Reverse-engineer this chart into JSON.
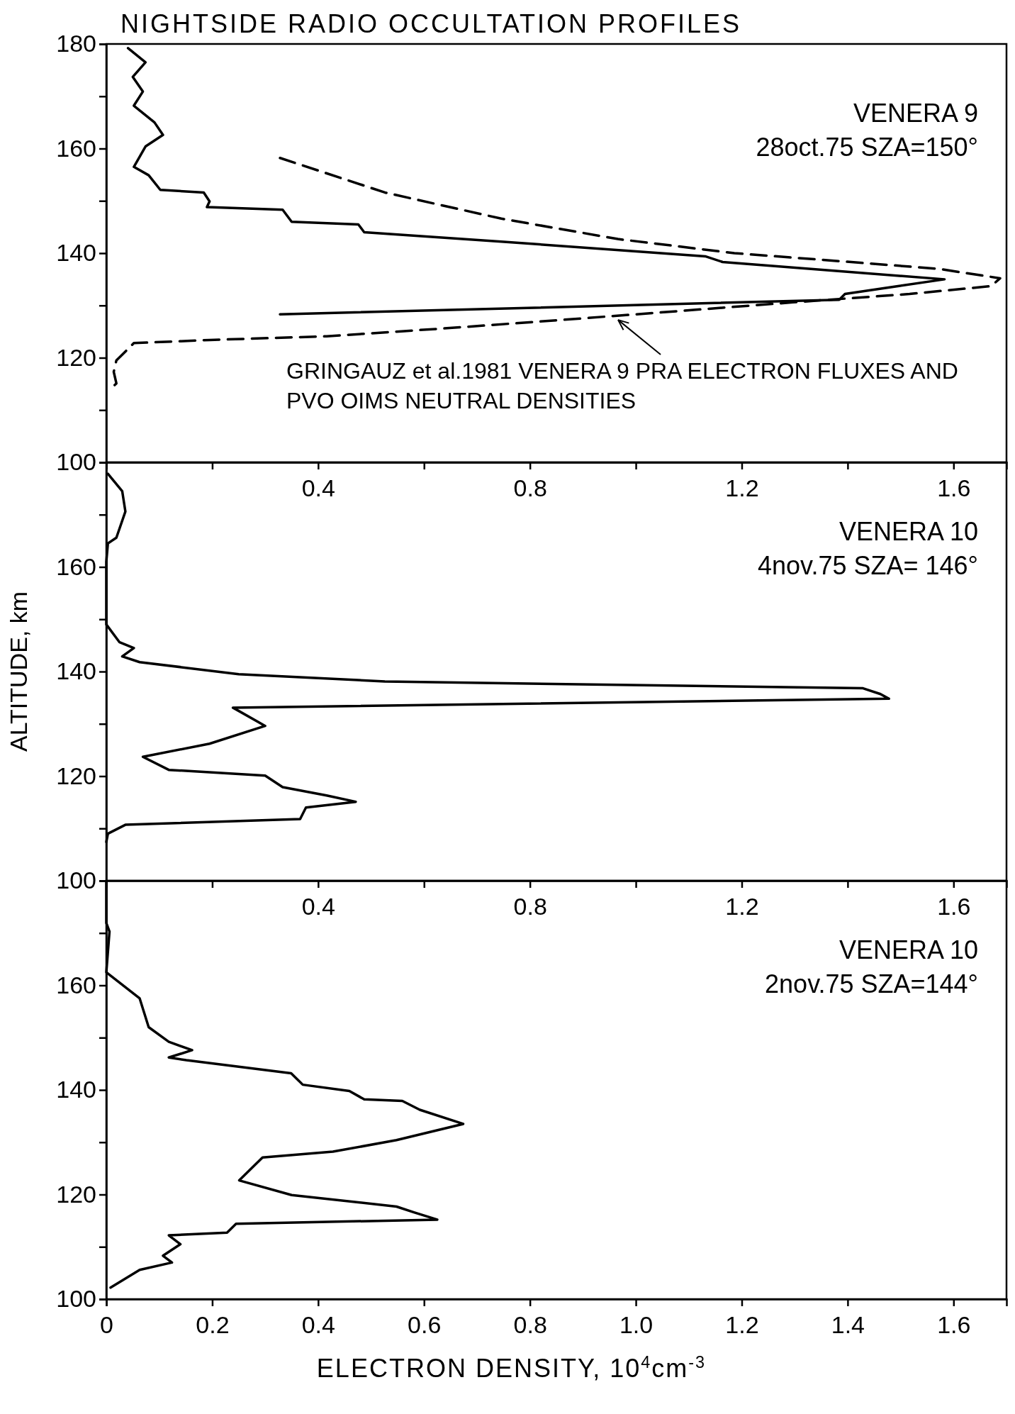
{
  "chart_data": [
    {
      "type": "line",
      "title": "NIGHTSIDE RADIO OCCULTATION PROFILES",
      "annotations": [
        "VENERA 9",
        "28oct.75  SZA=150°"
      ],
      "xlim": [
        0,
        1.7
      ],
      "xticks": [
        {
          "value": 0.2,
          "label": null
        },
        0.4,
        {
          "value": 0.6,
          "label": null
        },
        0.8,
        {
          "value": 1.0,
          "label": null
        },
        1.2,
        {
          "value": 1.4,
          "label": null
        },
        1.6
      ],
      "ylim": [
        100,
        180
      ],
      "yticks": [
        100,
        {
          "value": 110,
          "label": null
        },
        120,
        {
          "value": 130,
          "label": null
        },
        140,
        {
          "value": 150,
          "label": null
        },
        160,
        {
          "value": 170,
          "label": null
        },
        180
      ],
      "series": [
        {
          "color": "#000000",
          "line_style": "solid",
          "x": [
            0.041,
            0.074,
            0.05,
            0.069,
            0.052,
            0.091,
            0.107,
            0.074,
            0.052,
            0.08,
            0.102,
            0.184,
            0.195,
            0.19,
            0.333,
            0.35,
            0.476,
            0.487,
            0.746,
            1.131,
            1.164,
            1.583,
            1.495,
            1.395,
            1.384,
            0.328
          ],
          "values": [
            179.2,
            176.5,
            173.7,
            170.9,
            168.2,
            165,
            162.6,
            160.4,
            156.5,
            154.9,
            152.1,
            151.6,
            149.9,
            148.8,
            148.3,
            146,
            145.5,
            144,
            142.2,
            139.4,
            138.3,
            135,
            133.7,
            132.2,
            131.1,
            128.3
          ]
        },
        {
          "name": "GRINGAUZ et al.1981 VENERA 9 PRA ELECTRON FLUXES AND PVO OIMS NEUTRAL DENSITIES",
          "color": "#000000",
          "line_style": "dashed",
          "x": [
            0.328,
            0.526,
            0.746,
            0.966,
            1.186,
            1.407,
            1.572,
            1.688,
            1.671,
            1.517,
            1.297,
            1.077,
            0.856,
            0.636,
            0.416,
            0.195,
            0.052,
            0.036,
            0.019,
            0.014,
            0.019,
            0.008
          ],
          "values": [
            158.2,
            151.6,
            146.6,
            142.7,
            140,
            138.3,
            137,
            135.2,
            133.7,
            132.2,
            130.6,
            128.9,
            127.2,
            125.6,
            124.1,
            123.4,
            122.8,
            121.2,
            119.5,
            117.3,
            115.1,
            114
          ]
        }
      ]
    },
    {
      "type": "line",
      "ylabel": "ALTITUDE, km",
      "annotations": [
        "VENERA 10",
        "4nov.75  SZA= 146°"
      ],
      "xlim": [
        0,
        1.7
      ],
      "xticks": [
        {
          "value": 0.2,
          "label": null
        },
        0.4,
        {
          "value": 0.6,
          "label": null
        },
        0.8,
        {
          "value": 1.0,
          "label": null
        },
        1.2,
        {
          "value": 1.4,
          "label": null
        },
        1.6
      ],
      "ylim": [
        100,
        180
      ],
      "yticks": [
        100,
        {
          "value": 110,
          "label": null
        },
        120,
        {
          "value": 130,
          "label": null
        },
        140,
        {
          "value": 150,
          "label": null
        },
        160,
        {
          "value": 170,
          "label": null
        },
        {
          "value": 180,
          "label": null
        }
      ],
      "series": [
        {
          "color": "#000000",
          "line_style": "solid",
          "x": [
            0.003,
            0.03,
            0.036,
            0.019,
            0.003,
            0,
            0,
            0,
            0.025,
            0.052,
            0.03,
            0.063,
            0.25,
            0.526,
            1.429,
            1.462,
            1.478,
            0.239,
            0.3,
            0.195,
            0.069,
            0.118,
            0.3,
            0.333,
            0.416,
            0.471,
            0.377,
            0.366,
            0.036,
            0.003,
            0
          ],
          "values": [
            177.8,
            174.5,
            170.6,
            165.6,
            164.5,
            161,
            157.8,
            149,
            145.6,
            144.5,
            142.9,
            141.8,
            139.5,
            138.1,
            136.8,
            135.7,
            134.8,
            133.1,
            129.6,
            126.2,
            123.7,
            121.2,
            120.1,
            117.9,
            116.3,
            115.1,
            114,
            111.8,
            110.7,
            109,
            107.4
          ]
        }
      ]
    },
    {
      "type": "line",
      "xlabel": "ELECTRON DENSITY, 10$^{4}$cm$^{-3}$",
      "annotations": [
        "VENERA 10",
        "2nov.75  SZA=144°"
      ],
      "xlim": [
        0,
        1.7
      ],
      "xticks": [
        0,
        0.2,
        0.4,
        0.6,
        0.8,
        {
          "value": 1.0,
          "label": "1.0"
        },
        1.2,
        1.4,
        1.6
      ],
      "ylim": [
        100,
        180
      ],
      "yticks": [
        100,
        {
          "value": 110,
          "label": null
        },
        120,
        {
          "value": 130,
          "label": null
        },
        140,
        {
          "value": 150,
          "label": null
        },
        160,
        {
          "value": 170,
          "label": null
        },
        {
          "value": 180,
          "label": null
        }
      ],
      "series": [
        {
          "color": "#000000",
          "line_style": "solid",
          "x": [
            0,
            0,
            0,
            0.006,
            0,
            0.063,
            0.08,
            0.118,
            0.162,
            0.118,
            0.151,
            0.349,
            0.371,
            0.459,
            0.487,
            0.559,
            0.592,
            0.674,
            0.548,
            0.428,
            0.295,
            0.251,
            0.35,
            0.548,
            0.581,
            0.625,
            0.245,
            0.228,
            0.118,
            0.14,
            0.107,
            0.124,
            0.063,
            0.008
          ],
          "values": [
            179.7,
            174.1,
            171.9,
            170.3,
            162.5,
            157.5,
            152,
            149.2,
            147.6,
            146.2,
            145.7,
            143.2,
            141,
            139.8,
            138.2,
            137.9,
            136.2,
            133.5,
            130.4,
            128.2,
            127.1,
            122.7,
            119.9,
            117.7,
            116.6,
            115.2,
            114.4,
            112.7,
            112.2,
            110.5,
            108.3,
            107,
            105.6,
            102.2
          ]
        }
      ]
    }
  ]
}
